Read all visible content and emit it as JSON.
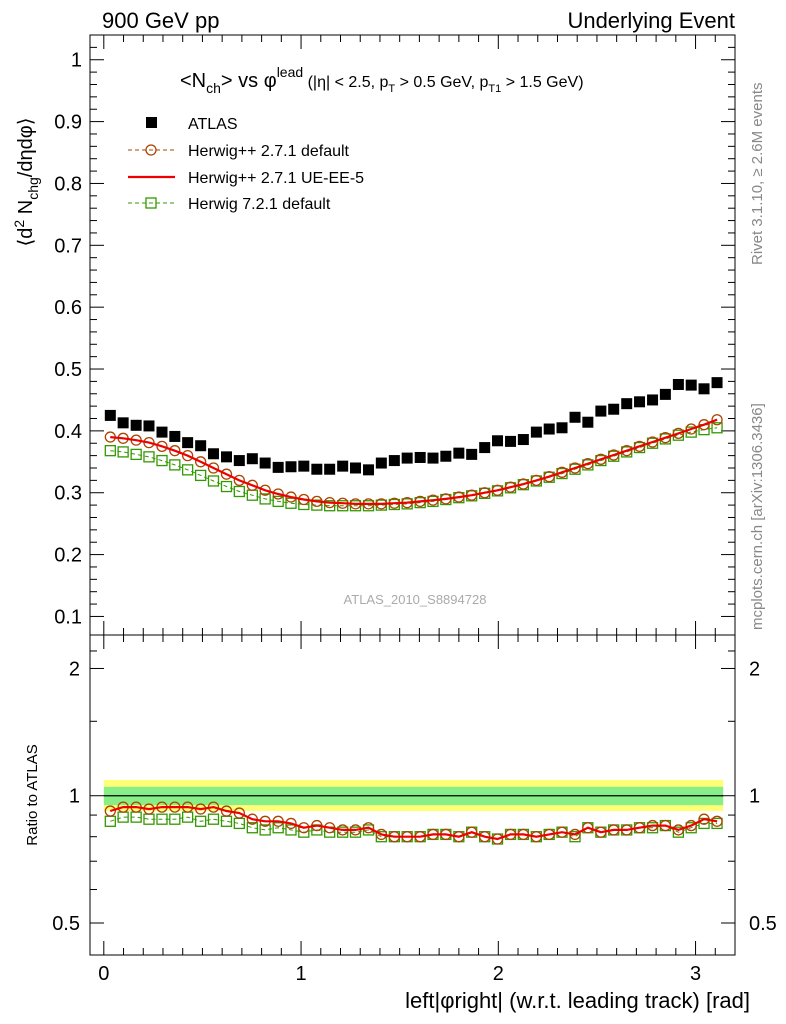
{
  "header": {
    "left_label": "900 GeV pp",
    "right_label": "Underlying Event"
  },
  "side_labels": {
    "rivet": "Rivet 3.1.10, ≥ 2.6M events",
    "mcplots": "mcplots.cern.ch [arXiv:1306.3436]"
  },
  "analysis_label": "ATLAS_2010_S8894728",
  "chart_data": [
    {
      "type": "scatter",
      "title": "<N_ch> vs φ^lead (|η| < 2.5, p_T > 0.5 GeV, p_T1 > 1.5 GeV)",
      "title_parts": {
        "main": "<N",
        "main_sub": "ch",
        "main_mid": "> vs φ",
        "main_sup": "lead",
        "cuts_a": " (|η| < 2.5, p",
        "cuts_sub1": "T",
        "cuts_b": " > 0.5 GeV, p",
        "cuts_sub2": "T1",
        "cuts_c": " > 1.5 GeV)"
      },
      "ylabel": "⟨d² N_chg/dηdφ⟩",
      "ylabel_parts": {
        "pre": "⟨d",
        "sup": "2",
        "mid": " N",
        "sub": "chg",
        "post": "/dηdφ⟩"
      },
      "xlim": [
        -0.07,
        3.2
      ],
      "ylim": [
        0.07,
        1.04
      ],
      "yticks": [
        0.1,
        0.2,
        0.3,
        0.4,
        0.5,
        0.6,
        0.7,
        0.8,
        0.9,
        1
      ],
      "ytick_labels": [
        "0.1",
        "0.2",
        "0.3",
        "0.4",
        "0.5",
        "0.6",
        "0.7",
        "0.8",
        "0.9",
        "1"
      ],
      "legend_position": "top-left",
      "x": [
        0.033,
        0.098,
        0.164,
        0.229,
        0.295,
        0.36,
        0.425,
        0.491,
        0.556,
        0.622,
        0.687,
        0.753,
        0.818,
        0.884,
        0.949,
        1.014,
        1.08,
        1.145,
        1.211,
        1.276,
        1.342,
        1.407,
        1.473,
        1.538,
        1.604,
        1.669,
        1.734,
        1.8,
        1.865,
        1.931,
        1.996,
        2.062,
        2.127,
        2.193,
        2.258,
        2.323,
        2.389,
        2.454,
        2.52,
        2.585,
        2.651,
        2.716,
        2.782,
        2.847,
        2.913,
        2.978,
        3.043,
        3.109
      ],
      "series": [
        {
          "name": "ATLAS",
          "color": "#000000",
          "marker": "filled-square",
          "values": [
            0.425,
            0.413,
            0.409,
            0.408,
            0.398,
            0.391,
            0.381,
            0.376,
            0.363,
            0.358,
            0.352,
            0.355,
            0.348,
            0.341,
            0.342,
            0.343,
            0.338,
            0.338,
            0.343,
            0.34,
            0.337,
            0.348,
            0.352,
            0.356,
            0.357,
            0.356,
            0.359,
            0.364,
            0.362,
            0.373,
            0.384,
            0.383,
            0.386,
            0.398,
            0.403,
            0.405,
            0.422,
            0.414,
            0.432,
            0.435,
            0.444,
            0.447,
            0.45,
            0.459,
            0.475,
            0.474,
            0.468,
            0.478
          ]
        },
        {
          "name": "Herwig++ 2.7.1 default",
          "color": "#aa4400",
          "marker": "open-circle",
          "line": "dashed",
          "values": [
            0.39,
            0.388,
            0.385,
            0.381,
            0.375,
            0.368,
            0.36,
            0.35,
            0.34,
            0.33,
            0.32,
            0.312,
            0.304,
            0.298,
            0.293,
            0.289,
            0.286,
            0.284,
            0.283,
            0.282,
            0.282,
            0.282,
            0.283,
            0.284,
            0.286,
            0.288,
            0.29,
            0.293,
            0.296,
            0.3,
            0.304,
            0.309,
            0.314,
            0.32,
            0.326,
            0.333,
            0.34,
            0.347,
            0.354,
            0.361,
            0.368,
            0.375,
            0.382,
            0.389,
            0.396,
            0.403,
            0.41,
            0.418
          ]
        },
        {
          "name": "Herwig++ 2.7.1 UE-EE-5",
          "color": "#ee0000",
          "marker": "none",
          "line": "solid",
          "values": [
            0.39,
            0.388,
            0.385,
            0.381,
            0.375,
            0.368,
            0.36,
            0.35,
            0.34,
            0.33,
            0.32,
            0.312,
            0.304,
            0.298,
            0.293,
            0.289,
            0.286,
            0.284,
            0.283,
            0.282,
            0.282,
            0.282,
            0.283,
            0.284,
            0.286,
            0.288,
            0.29,
            0.293,
            0.296,
            0.3,
            0.304,
            0.309,
            0.314,
            0.32,
            0.326,
            0.333,
            0.34,
            0.347,
            0.354,
            0.361,
            0.368,
            0.375,
            0.382,
            0.389,
            0.396,
            0.403,
            0.41,
            0.418
          ]
        },
        {
          "name": "Herwig 7.2.1 default",
          "color": "#339900",
          "marker": "open-square",
          "line": "dashed",
          "values": [
            0.368,
            0.366,
            0.362,
            0.358,
            0.352,
            0.345,
            0.337,
            0.328,
            0.319,
            0.31,
            0.302,
            0.296,
            0.29,
            0.286,
            0.283,
            0.281,
            0.28,
            0.279,
            0.279,
            0.279,
            0.279,
            0.28,
            0.281,
            0.282,
            0.284,
            0.286,
            0.289,
            0.292,
            0.295,
            0.299,
            0.303,
            0.308,
            0.313,
            0.319,
            0.325,
            0.331,
            0.338,
            0.345,
            0.352,
            0.359,
            0.366,
            0.373,
            0.38,
            0.387,
            0.393,
            0.398,
            0.402,
            0.405
          ]
        }
      ]
    },
    {
      "type": "scatter",
      "title": "",
      "xlabel": "left|φright| (w.r.t. leading track) [rad]",
      "ylabel": "Ratio to ATLAS",
      "xlim": [
        -0.07,
        3.2
      ],
      "ylim": [
        0.42,
        2.4
      ],
      "log_y": true,
      "xticks": [
        0,
        1,
        2,
        3
      ],
      "xtick_labels": [
        "0",
        "1",
        "2",
        "3"
      ],
      "yticks": [
        0.5,
        1,
        2
      ],
      "ytick_labels": [
        "0.5",
        "1",
        "2"
      ],
      "band": {
        "inner": [
          0.95,
          1.05
        ],
        "outer": [
          0.92,
          1.09
        ],
        "inner_color": "#88ee88",
        "outer_color": "#ffff77"
      },
      "series": [
        {
          "name": "Herwig++ 2.7.1 default",
          "color": "#aa4400",
          "marker": "open-circle",
          "values": [
            0.92,
            0.94,
            0.94,
            0.93,
            0.94,
            0.94,
            0.94,
            0.93,
            0.94,
            0.92,
            0.91,
            0.88,
            0.87,
            0.87,
            0.86,
            0.84,
            0.85,
            0.84,
            0.83,
            0.83,
            0.84,
            0.81,
            0.8,
            0.8,
            0.8,
            0.81,
            0.81,
            0.8,
            0.82,
            0.8,
            0.79,
            0.81,
            0.81,
            0.8,
            0.81,
            0.82,
            0.81,
            0.84,
            0.82,
            0.83,
            0.83,
            0.84,
            0.85,
            0.85,
            0.83,
            0.85,
            0.88,
            0.87
          ]
        },
        {
          "name": "Herwig++ 2.7.1 UE-EE-5",
          "color": "#ee0000",
          "marker": "none",
          "values": [
            0.92,
            0.94,
            0.94,
            0.93,
            0.94,
            0.94,
            0.94,
            0.93,
            0.94,
            0.92,
            0.91,
            0.88,
            0.87,
            0.87,
            0.86,
            0.84,
            0.85,
            0.84,
            0.83,
            0.83,
            0.84,
            0.81,
            0.8,
            0.8,
            0.8,
            0.81,
            0.81,
            0.8,
            0.82,
            0.8,
            0.79,
            0.81,
            0.81,
            0.8,
            0.81,
            0.82,
            0.81,
            0.84,
            0.82,
            0.83,
            0.83,
            0.84,
            0.85,
            0.85,
            0.83,
            0.85,
            0.88,
            0.87
          ]
        },
        {
          "name": "Herwig 7.2.1 default",
          "color": "#339900",
          "marker": "open-square",
          "values": [
            0.87,
            0.89,
            0.89,
            0.88,
            0.88,
            0.88,
            0.89,
            0.87,
            0.88,
            0.87,
            0.86,
            0.84,
            0.83,
            0.84,
            0.83,
            0.82,
            0.83,
            0.82,
            0.82,
            0.82,
            0.83,
            0.8,
            0.8,
            0.8,
            0.8,
            0.81,
            0.81,
            0.8,
            0.82,
            0.8,
            0.79,
            0.81,
            0.81,
            0.8,
            0.81,
            0.82,
            0.8,
            0.84,
            0.82,
            0.83,
            0.83,
            0.84,
            0.84,
            0.85,
            0.82,
            0.84,
            0.86,
            0.86
          ]
        }
      ]
    }
  ]
}
